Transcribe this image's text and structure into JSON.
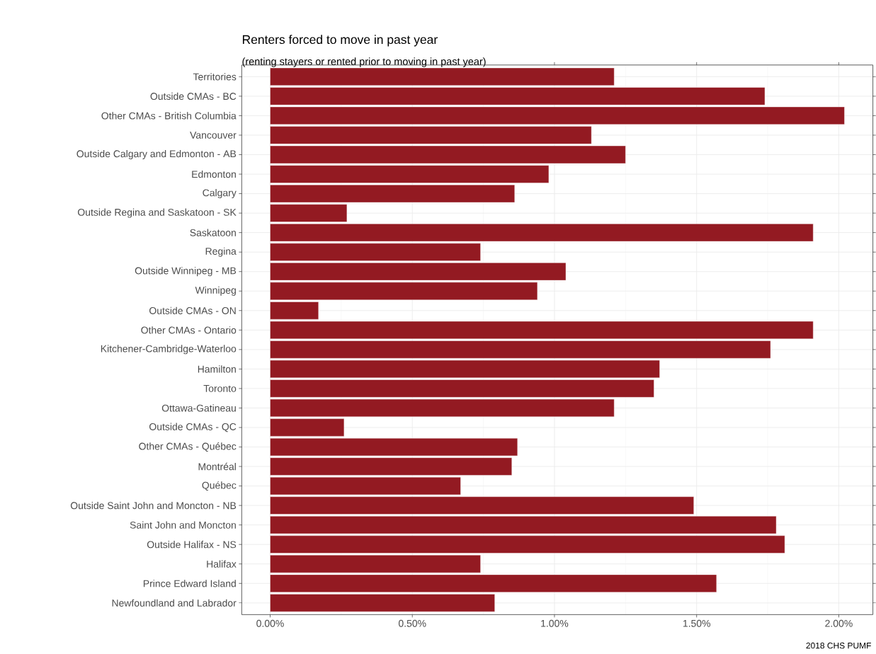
{
  "chart_data": {
    "type": "bar",
    "orientation": "horizontal",
    "title": "Renters forced to move in past year",
    "subtitle": "(renting stayers or rented prior to moving in past year)",
    "categories": [
      "Territories",
      "Outside CMAs - BC",
      "Other CMAs - British Columbia",
      "Vancouver",
      "Outside Calgary and Edmonton - AB",
      "Edmonton",
      "Calgary",
      "Outside Regina and Saskatoon - SK",
      "Saskatoon",
      "Regina",
      "Outside Winnipeg - MB",
      "Winnipeg",
      "Outside CMAs - ON",
      "Other CMAs - Ontario",
      "Kitchener-Cambridge-Waterloo",
      "Hamilton",
      "Toronto",
      "Ottawa-Gatineau",
      "Outside CMAs - QC",
      "Other CMAs - Québec",
      "Montréal",
      "Québec",
      "Outside Saint John and Moncton - NB",
      "Saint John and Moncton",
      "Outside Halifax - NS",
      "Halifax",
      "Prince Edward Island",
      "Newfoundland and Labrador"
    ],
    "values": [
      1.21,
      1.74,
      2.02,
      1.13,
      1.25,
      0.98,
      0.86,
      0.27,
      1.91,
      0.74,
      1.04,
      0.94,
      0.17,
      1.91,
      1.76,
      1.37,
      1.35,
      1.21,
      0.26,
      0.87,
      0.85,
      0.67,
      1.49,
      1.78,
      1.81,
      0.74,
      1.57,
      0.79
    ],
    "color": "#931a22",
    "xlim": [
      -0.1,
      2.12
    ],
    "xticks": [
      {
        "value": 0,
        "label": "0.00%"
      },
      {
        "value": 0.5,
        "label": "0.50%"
      },
      {
        "value": 1,
        "label": "1.00%"
      },
      {
        "value": 1.5,
        "label": "1.50%"
      },
      {
        "value": 2,
        "label": "2.00%"
      }
    ],
    "grid": true,
    "annotations": [
      "2018 CHS PUMF"
    ]
  }
}
